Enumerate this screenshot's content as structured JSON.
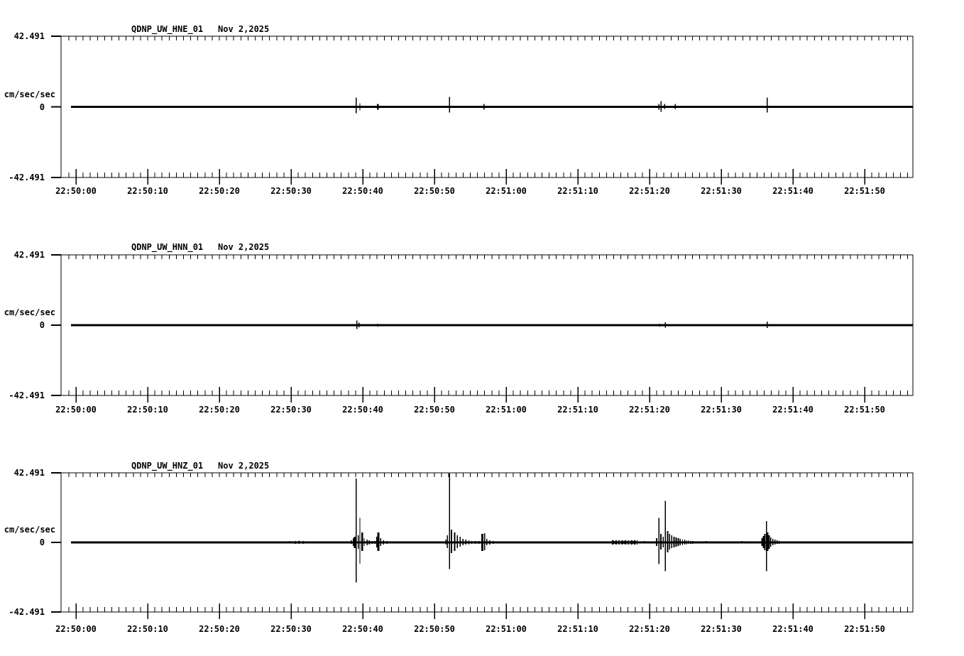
{
  "page": {
    "background": "#ffffff",
    "foreground": "#000000"
  },
  "chart_data": {
    "type": "line",
    "subtype": "seismogram-multi-panel",
    "window_start_time": "22:50:00",
    "x_tick_labels": [
      "22:50:00",
      "22:50:10",
      "22:50:20",
      "22:50:30",
      "22:50:40",
      "22:50:50",
      "22:51:00",
      "22:51:10",
      "22:51:20",
      "22:51:30",
      "22:51:40",
      "22:51:50"
    ],
    "x_major_interval_sec": 10,
    "x_minor_interval_sec": 1,
    "y_units_label": "cm/sec/sec",
    "ylim": [
      -42.491,
      42.491
    ],
    "y_max_label": "42.491",
    "y_zero_label": "0",
    "y_min_label": "-42.491",
    "spikes_format": "[seconds_after_22:50:00, amplitude_up_cm_s2, amplitude_down_cm_s2, optional_line_width_px]",
    "noise_bands_format": "[start_sec, end_sec, amplitude_cm_s2]",
    "panels": [
      {
        "code": "HNE",
        "title": "QDNP_UW_HNE_01",
        "date_label": "Nov 2,2025",
        "spikes": [
          [
            39.1,
            5.6,
            3.9
          ],
          [
            39.6,
            2.1,
            2.1
          ],
          [
            42.1,
            1.7,
            1.7,
            2.5
          ],
          [
            52.1,
            6.0,
            3.4
          ],
          [
            56.9,
            1.7,
            1.7
          ],
          [
            81.3,
            1.7,
            1.7
          ],
          [
            81.6,
            3.4,
            3.0
          ],
          [
            82.1,
            1.7,
            1.3
          ],
          [
            83.6,
            1.7,
            1.3
          ],
          [
            96.4,
            5.6,
            3.4
          ]
        ],
        "noise_bands": []
      },
      {
        "code": "HNN",
        "title": "QDNP_UW_HNN_01",
        "date_label": "Nov 2,2025",
        "spikes": [
          [
            39.2,
            2.8,
            2.4
          ],
          [
            39.5,
            1.5,
            1.3
          ],
          [
            42.1,
            0.9,
            0.9
          ],
          [
            47.3,
            0.7,
            0.7
          ],
          [
            52.3,
            0.7,
            0.7
          ],
          [
            81.4,
            0.9,
            0.9
          ],
          [
            82.2,
            1.7,
            1.5
          ],
          [
            96.4,
            2.1,
            1.7
          ]
        ],
        "noise_bands": []
      },
      {
        "code": "HNZ",
        "title": "QDNP_UW_HNZ_01",
        "date_label": "Nov 2,2025",
        "spikes": [
          [
            10.7,
            0.5,
            0.4
          ],
          [
            14.0,
            0.6,
            0.5
          ],
          [
            26.8,
            0.6,
            0.4
          ],
          [
            29.8,
            0.9,
            0.6
          ],
          [
            30.6,
            0.9,
            0.9
          ],
          [
            31.1,
            1.1,
            0.9
          ],
          [
            31.7,
            0.9,
            0.9
          ],
          [
            38.4,
            1.3,
            0.9
          ],
          [
            38.7,
            2.6,
            2.1
          ],
          [
            38.9,
            3.4,
            3.4,
            2.5
          ],
          [
            39.1,
            39.1,
            24.5
          ],
          [
            39.4,
            4.3,
            3.9
          ],
          [
            39.6,
            15.0,
            12.9
          ],
          [
            39.9,
            6.0,
            5.2,
            2.5
          ],
          [
            40.2,
            2.6,
            2.1
          ],
          [
            40.6,
            1.7,
            1.7
          ],
          [
            40.9,
            1.3,
            1.3
          ],
          [
            41.3,
            0.9,
            0.9
          ],
          [
            41.7,
            0.9,
            0.9
          ],
          [
            42.0,
            3.4,
            3.0,
            2.5
          ],
          [
            42.2,
            6.0,
            5.2,
            3
          ],
          [
            42.5,
            2.6,
            2.1
          ],
          [
            42.9,
            1.3,
            1.3
          ],
          [
            43.4,
            0.9,
            0.9
          ],
          [
            43.9,
            0.6,
            0.6
          ],
          [
            44.9,
            0.4,
            0.4
          ],
          [
            45.8,
            0.4,
            0.4
          ],
          [
            46.8,
            0.6,
            0.4
          ],
          [
            47.8,
            0.4,
            0.4
          ],
          [
            51.6,
            1.7,
            1.3
          ],
          [
            51.8,
            4.3,
            3.4
          ],
          [
            52.1,
            42.1,
            16.3
          ],
          [
            52.4,
            7.7,
            6.4,
            2
          ],
          [
            52.8,
            6.0,
            5.2,
            2
          ],
          [
            53.2,
            4.3,
            3.4
          ],
          [
            53.6,
            3.4,
            2.6
          ],
          [
            54.0,
            2.1,
            1.7
          ],
          [
            54.4,
            1.7,
            1.3
          ],
          [
            54.8,
            1.3,
            1.3
          ],
          [
            55.2,
            0.9,
            0.9
          ],
          [
            55.7,
            0.9,
            0.9
          ],
          [
            56.2,
            0.9,
            0.9
          ],
          [
            56.7,
            5.2,
            5.2,
            3
          ],
          [
            57.0,
            5.6,
            4.7
          ],
          [
            57.3,
            2.1,
            1.7
          ],
          [
            57.7,
            1.3,
            1.3
          ],
          [
            58.2,
            0.9,
            0.9
          ],
          [
            79.0,
            0.6,
            0.6
          ],
          [
            79.3,
            0.9,
            0.6
          ],
          [
            80.0,
            0.4,
            0.4
          ],
          [
            80.5,
            0.6,
            0.4
          ],
          [
            81.0,
            2.6,
            2.1,
            2
          ],
          [
            81.3,
            15.0,
            13.3
          ],
          [
            81.6,
            5.2,
            4.3,
            2
          ],
          [
            81.9,
            3.4,
            3.0
          ],
          [
            82.2,
            25.3,
            17.6
          ],
          [
            82.5,
            6.9,
            6.0,
            2
          ],
          [
            82.8,
            5.2,
            4.3
          ],
          [
            83.1,
            4.3,
            3.4
          ],
          [
            83.4,
            3.4,
            3.0,
            2
          ],
          [
            83.7,
            3.0,
            2.6,
            2
          ],
          [
            84.0,
            2.6,
            2.1,
            2
          ],
          [
            84.3,
            2.1,
            1.7
          ],
          [
            84.6,
            1.7,
            1.7
          ],
          [
            84.9,
            1.7,
            1.3
          ],
          [
            85.1,
            1.3,
            1.3
          ],
          [
            85.4,
            1.3,
            0.9
          ],
          [
            85.7,
            0.9,
            0.9
          ],
          [
            86.0,
            0.9,
            0.9
          ],
          [
            86.4,
            0.6,
            0.6
          ],
          [
            86.9,
            0.4,
            0.4
          ],
          [
            87.4,
            0.4,
            0.4
          ],
          [
            87.9,
            0.9,
            0.6
          ],
          [
            88.9,
            0.4,
            0.4
          ],
          [
            89.9,
            0.6,
            0.4
          ],
          [
            90.9,
            0.4,
            0.4
          ],
          [
            91.9,
            0.4,
            0.4
          ],
          [
            92.9,
            0.9,
            0.6
          ],
          [
            93.9,
            0.4,
            0.4
          ],
          [
            94.6,
            0.6,
            0.4
          ],
          [
            95.3,
            0.4,
            0.4
          ],
          [
            95.7,
            2.6,
            2.1,
            2
          ],
          [
            95.9,
            3.9,
            3.4,
            2
          ],
          [
            96.1,
            5.2,
            4.7,
            2
          ],
          [
            96.3,
            12.9,
            17.6
          ],
          [
            96.5,
            6.0,
            5.2,
            2
          ],
          [
            96.7,
            4.3,
            3.9,
            2
          ],
          [
            96.9,
            3.0,
            2.6
          ],
          [
            97.2,
            2.1,
            1.7
          ],
          [
            97.5,
            1.7,
            1.3
          ],
          [
            97.8,
            1.3,
            0.9
          ],
          [
            98.1,
            0.9,
            0.9
          ],
          [
            98.5,
            0.6,
            0.6
          ],
          [
            98.9,
            0.4,
            0.4
          ],
          [
            99.3,
            0.4,
            0.4
          ]
        ],
        "noise_bands": [
          [
            74.8,
            78.4,
            1.4
          ]
        ]
      }
    ]
  }
}
